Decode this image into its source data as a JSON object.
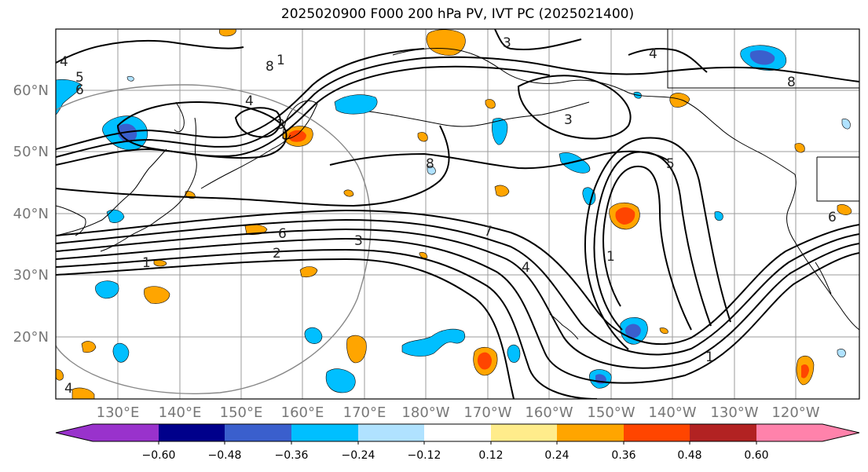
{
  "title": "2025020900 F000 200 hPa PV, IVT PC (2025021400)",
  "latitude_labels": [
    "60°N",
    "50°N",
    "40°N",
    "30°N",
    "20°N"
  ],
  "longitude_labels": [
    "130°E",
    "140°E",
    "150°E",
    "160°E",
    "170°E",
    "180°W",
    "170°W",
    "160°W",
    "150°W",
    "140°W",
    "130°W",
    "120°W"
  ],
  "contour_labels": [
    "4",
    "5",
    "6",
    "3",
    "8",
    "1",
    "4",
    "3",
    "4",
    "8",
    "3",
    "8",
    "5",
    "6",
    "6",
    "2",
    "1",
    "3",
    "7",
    "4",
    "1",
    "1",
    "4"
  ],
  "colorbar": {
    "colors": [
      "#9932cc",
      "#00008b",
      "#3a5fcd",
      "#00bfff",
      "#b0e2ff",
      "#ffffff",
      "#ffec8b",
      "#ffa500",
      "#ff4500",
      "#b22222",
      "#ff82ab"
    ],
    "tick_labels": [
      "−0.60",
      "−0.48",
      "−0.36",
      "−0.24",
      "−0.12",
      "0.12",
      "0.24",
      "0.36",
      "0.48",
      "0.60"
    ]
  },
  "colors": {
    "contour": "#000000",
    "grid": "#9b9b9b",
    "circle": "#888888",
    "axis_label": "#777777"
  }
}
